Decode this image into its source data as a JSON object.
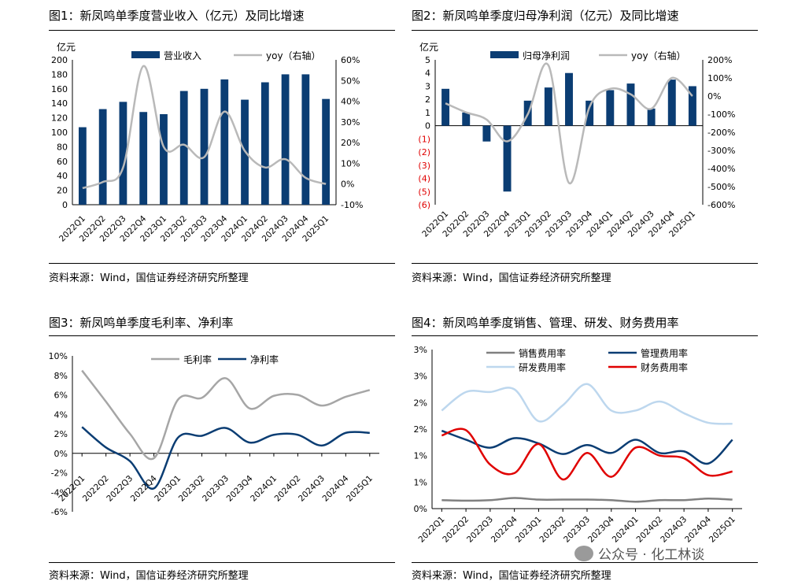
{
  "source_text": "资料来源：Wind，国信证券经济研究所整理",
  "watermark": "公众号 · 化工林谈",
  "chart_data": [
    {
      "id": "c1",
      "type": "bar",
      "title": "图1：新凤鸣单季度营业收入（亿元）及同比增速",
      "ylabel": "亿元",
      "categories": [
        "2022Q1",
        "2022Q2",
        "2022Q3",
        "2022Q4",
        "2023Q1",
        "2023Q2",
        "2023Q3",
        "2023Q4",
        "2024Q1",
        "2024Q2",
        "2024Q3",
        "2024Q4",
        "2025Q1"
      ],
      "series": [
        {
          "name": "营业收入",
          "type": "bar",
          "axis": "left",
          "color": "#0b3d73",
          "values": [
            107,
            132,
            142,
            128,
            125,
            157,
            160,
            173,
            145,
            169,
            180,
            180,
            146
          ]
        },
        {
          "name": "yoy（右轴）",
          "type": "line",
          "axis": "right",
          "color": "#b9b9b9",
          "values": [
            -2,
            1,
            8,
            57,
            18,
            19,
            13,
            35,
            16,
            8,
            12,
            3,
            0
          ]
        }
      ],
      "ylim": [
        0,
        200
      ],
      "yticks": [
        0,
        20,
        40,
        60,
        80,
        100,
        120,
        140,
        160,
        180,
        200
      ],
      "y2lim": [
        -10,
        60
      ],
      "y2ticks": [
        "-10%",
        "0%",
        "10%",
        "20%",
        "30%",
        "40%",
        "50%",
        "60%"
      ],
      "legend": "top"
    },
    {
      "id": "c2",
      "type": "bar",
      "title": "图2：新凤鸣单季度归母净利润（亿元）及同比增速",
      "ylabel": "亿元",
      "categories": [
        "2022Q1",
        "2022Q2",
        "2022Q3",
        "2022Q4",
        "2023Q1",
        "2023Q2",
        "2023Q3",
        "2023Q4",
        "2024Q1",
        "2024Q2",
        "2024Q3",
        "2024Q4",
        "2025Q1"
      ],
      "series": [
        {
          "name": "归母净利润",
          "type": "bar",
          "axis": "left",
          "color": "#0b3d73",
          "values": [
            2.8,
            1.0,
            -1.2,
            -5.0,
            1.9,
            2.9,
            4.0,
            1.9,
            2.7,
            3.2,
            1.3,
            3.5,
            3.0
          ]
        },
        {
          "name": "yoy（右轴）",
          "type": "line",
          "axis": "right",
          "color": "#b9b9b9",
          "values": [
            -40,
            -90,
            -130,
            -250,
            -100,
            170,
            -480,
            -60,
            40,
            10,
            -70,
            100,
            0
          ]
        }
      ],
      "ylim": [
        -6,
        5
      ],
      "yticks": [
        "(6)",
        "(5)",
        "(4)",
        "(3)",
        "(2)",
        "(1)",
        "0",
        "1",
        "2",
        "3",
        "4",
        "5"
      ],
      "y2lim": [
        -600,
        200
      ],
      "y2ticks": [
        "-600%",
        "-500%",
        "-400%",
        "-300%",
        "-200%",
        "-100%",
        "0%",
        "100%",
        "200%"
      ],
      "legend": "top"
    },
    {
      "id": "c3",
      "type": "line",
      "title": "图3：新凤鸣单季度毛利率、净利率",
      "categories": [
        "2022Q1",
        "2022Q2",
        "2022Q3",
        "2022Q4",
        "2023Q1",
        "2023Q2",
        "2023Q3",
        "2023Q4",
        "2024Q1",
        "2024Q2",
        "2024Q3",
        "2024Q4",
        "2025Q1"
      ],
      "series": [
        {
          "name": "毛利率",
          "color": "#a6a6a6",
          "values": [
            8.5,
            5.3,
            2.0,
            -0.5,
            5.5,
            5.7,
            7.7,
            4.6,
            5.9,
            6.0,
            4.9,
            5.8,
            6.5
          ]
        },
        {
          "name": "净利率",
          "color": "#0b3d73",
          "values": [
            2.7,
            0.6,
            -0.8,
            -3.6,
            1.6,
            1.8,
            2.6,
            1.1,
            1.9,
            1.9,
            0.8,
            2.1,
            2.1
          ]
        }
      ],
      "ylim": [
        -6,
        10
      ],
      "yticks": [
        "-6%",
        "-4%",
        "-2%",
        "0%",
        "2%",
        "4%",
        "6%",
        "8%",
        "10%"
      ],
      "legend": "top"
    },
    {
      "id": "c4",
      "type": "line",
      "title": "图4：新凤鸣单季度销售、管理、研发、财务费用率",
      "categories": [
        "2022Q1",
        "2022Q2",
        "2022Q3",
        "2022Q4",
        "2023Q1",
        "2023Q2",
        "2023Q3",
        "2023Q4",
        "2024Q1",
        "2024Q2",
        "2024Q3",
        "2024Q4",
        "2025Q1"
      ],
      "series": [
        {
          "name": "销售费用率",
          "color": "#808080",
          "values": [
            0.16,
            0.15,
            0.16,
            0.2,
            0.17,
            0.17,
            0.17,
            0.16,
            0.13,
            0.16,
            0.16,
            0.19,
            0.17
          ]
        },
        {
          "name": "管理费用率",
          "color": "#0b3d73",
          "values": [
            1.47,
            1.3,
            1.15,
            1.33,
            1.23,
            1.03,
            1.2,
            1.05,
            1.3,
            1.05,
            1.08,
            0.85,
            1.3
          ]
        },
        {
          "name": "研发费用率",
          "color": "#bdd7ee",
          "values": [
            1.85,
            2.2,
            2.2,
            2.25,
            1.65,
            1.95,
            2.35,
            1.85,
            1.85,
            2.02,
            1.8,
            1.62,
            1.6
          ]
        },
        {
          "name": "财务费用率",
          "color": "#e00000",
          "values": [
            1.38,
            1.48,
            0.83,
            0.67,
            1.22,
            0.55,
            1.05,
            0.6,
            1.15,
            1.0,
            0.95,
            0.63,
            0.7
          ]
        }
      ],
      "ylim": [
        0,
        3
      ],
      "yticks": [
        "0%",
        "1%",
        "1%",
        "2%",
        "2%",
        "3%",
        "3%"
      ],
      "legend": "top"
    }
  ]
}
